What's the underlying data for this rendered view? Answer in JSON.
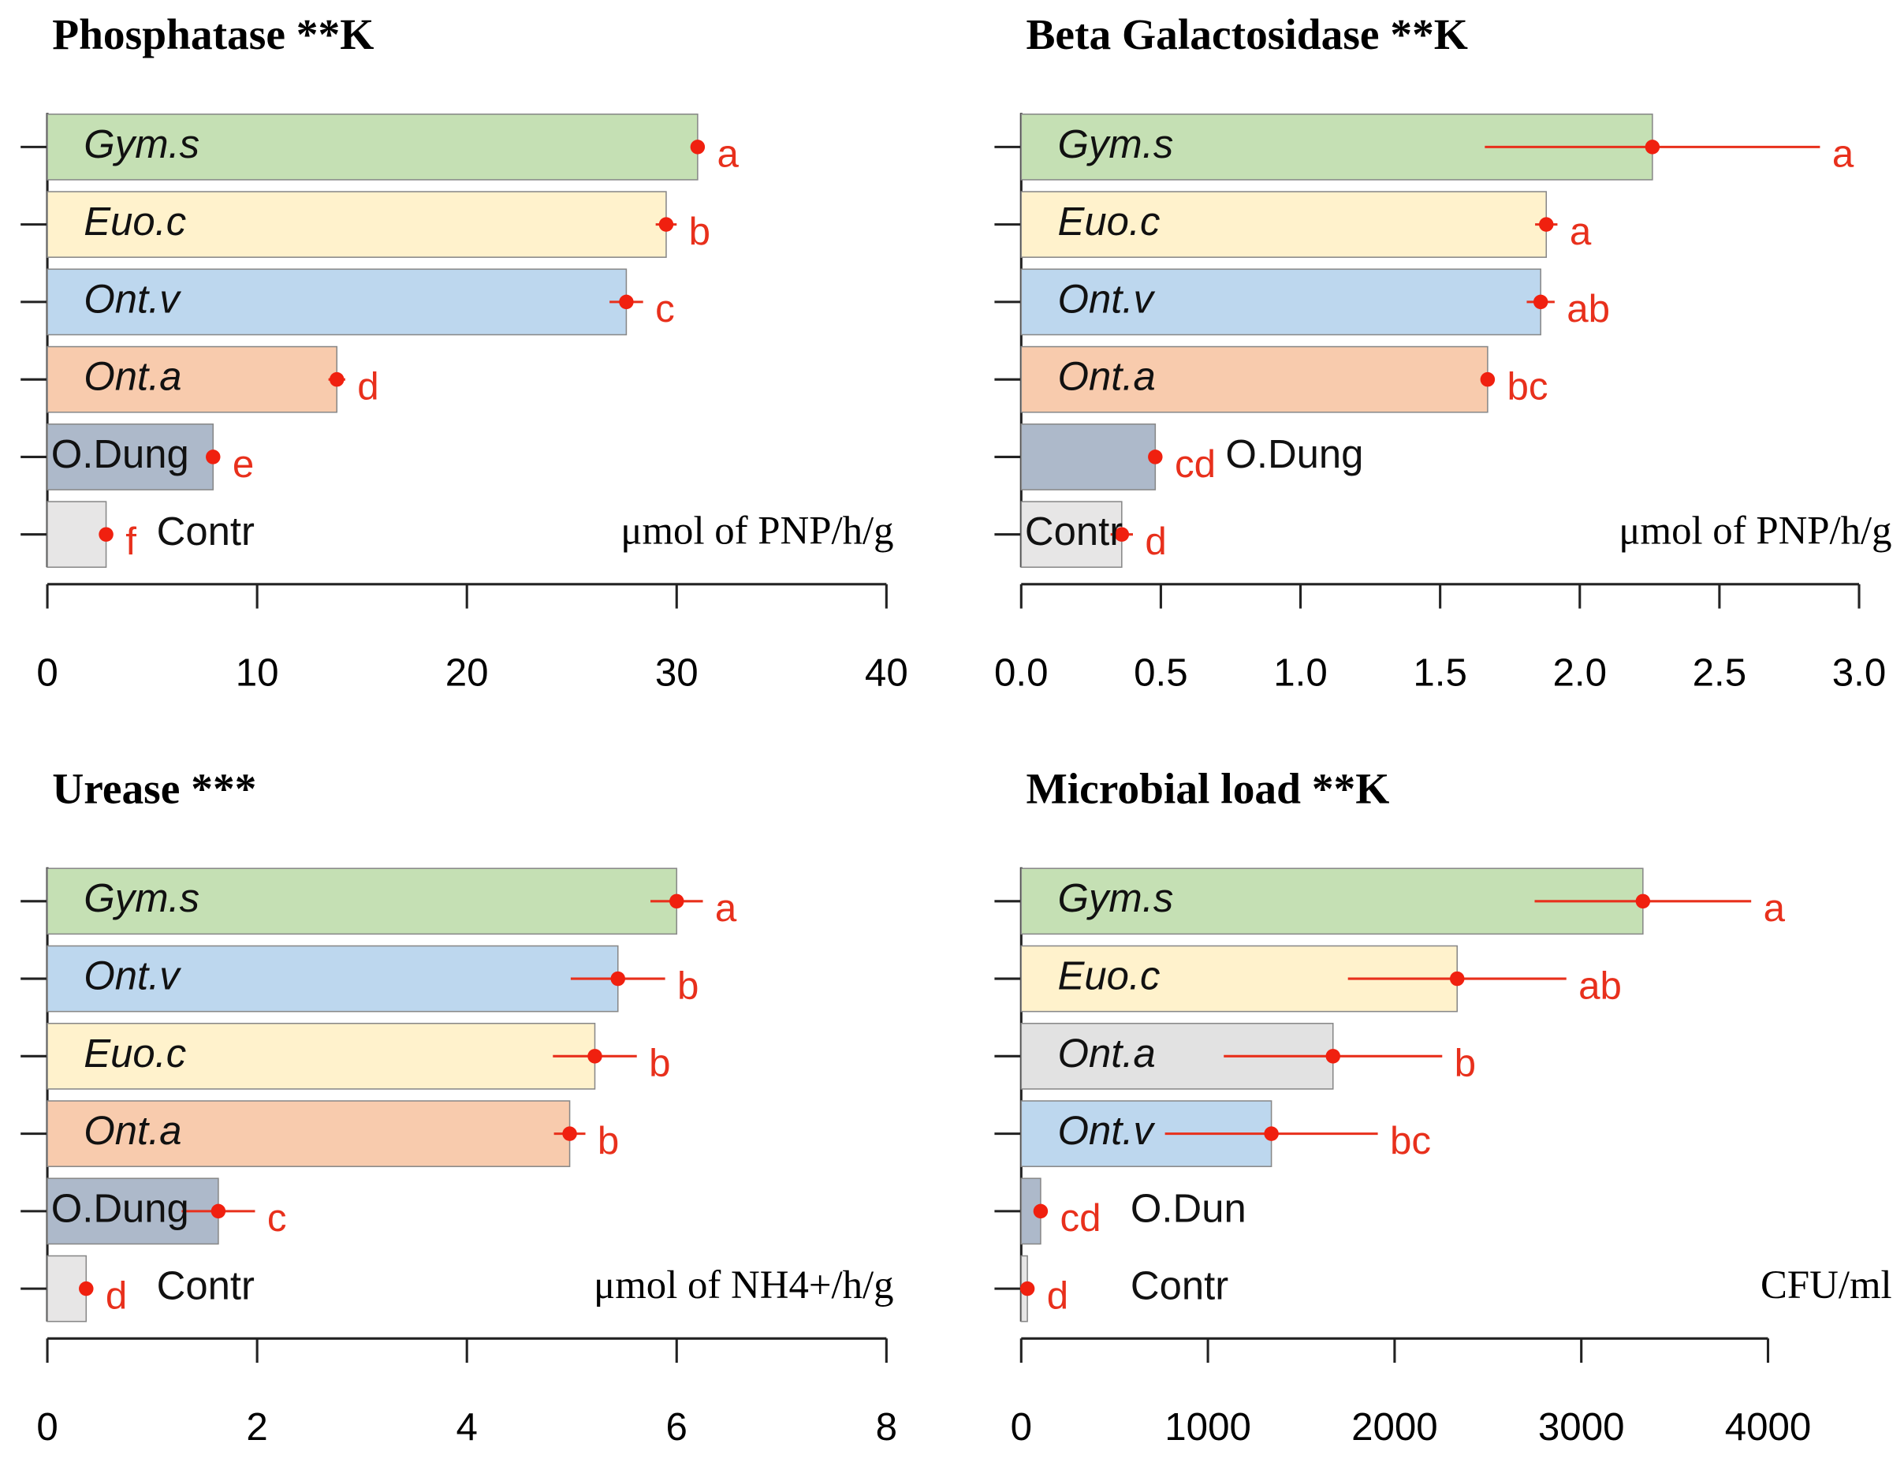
{
  "chart_data": [
    {
      "type": "bar",
      "title": "Phosphatase  **K",
      "unit": "μmol of PNP/h/g",
      "categories": [
        "Gym.s",
        "Euo.c",
        "Ont.v",
        "Ont.a",
        "O.Dung",
        "Contr"
      ],
      "label_italic": [
        true,
        true,
        true,
        true,
        false,
        false
      ],
      "values": [
        31.0,
        29.5,
        27.6,
        13.8,
        7.9,
        2.8
      ],
      "errors": [
        0.3,
        0.5,
        0.8,
        0.4,
        0.2,
        0.1
      ],
      "annotations": [
        "a",
        "b",
        "c",
        "d",
        "e",
        "f"
      ],
      "colors": [
        "#c5e0b4",
        "#fff2cc",
        "#bdd7ee",
        "#f8cbad",
        "#adb9ca",
        "#e7e6e6"
      ],
      "xlim": [
        0,
        40
      ],
      "xticks": [
        0,
        10,
        20,
        30,
        40
      ]
    },
    {
      "type": "bar",
      "title": "Beta Galactosidase  **K",
      "unit": "μmol of PNP/h/g",
      "categories": [
        "Gym.s",
        "Euo.c",
        "Ont.v",
        "Ont.a",
        "O.Dung",
        "Contr"
      ],
      "label_italic": [
        true,
        true,
        true,
        true,
        false,
        false
      ],
      "values": [
        2.26,
        1.88,
        1.86,
        1.67,
        0.48,
        0.36
      ],
      "errors": [
        0.6,
        0.04,
        0.05,
        0.02,
        0.01,
        0.04
      ],
      "annotations": [
        "a",
        "a",
        "ab",
        "bc",
        "cd",
        "d"
      ],
      "colors": [
        "#c5e0b4",
        "#fff2cc",
        "#bdd7ee",
        "#f8cbad",
        "#adb9ca",
        "#e7e6e6"
      ],
      "xlim": [
        0,
        3
      ],
      "xticks": [
        {
          "value": 0,
          "label": "0.0"
        },
        0.5,
        {
          "value": 1,
          "label": "1.0"
        },
        1.5,
        {
          "value": 2,
          "label": "2.0"
        },
        2.5,
        {
          "value": 3,
          "label": "3.0"
        }
      ]
    },
    {
      "type": "bar",
      "title": "Urease ***",
      "unit": "μmol of NH4+/h/g",
      "categories": [
        "Gym.s",
        "Ont.v",
        "Euo.c",
        "Ont.a",
        "O.Dung",
        "Contr"
      ],
      "label_italic": [
        true,
        true,
        true,
        true,
        false,
        false
      ],
      "values": [
        6.0,
        5.44,
        5.22,
        4.98,
        1.63,
        0.37
      ],
      "errors": [
        0.25,
        0.45,
        0.4,
        0.15,
        0.35,
        0.03
      ],
      "annotations": [
        "a",
        "b",
        "b",
        "b",
        "c",
        "d"
      ],
      "colors": [
        "#c5e0b4",
        "#bdd7ee",
        "#fff2cc",
        "#f8cbad",
        "#adb9ca",
        "#e7e6e6"
      ],
      "xlim": [
        0,
        8
      ],
      "xticks": [
        0,
        2,
        4,
        6,
        8
      ]
    },
    {
      "type": "bar",
      "title": "Microbial load  **K",
      "unit": "CFU/ml",
      "categories": [
        "Gym.s",
        "Euo.c",
        "Ont.a",
        "Ont.v",
        "O.Dun",
        "Contr"
      ],
      "label_italic": [
        true,
        true,
        true,
        true,
        false,
        false
      ],
      "values": [
        3330,
        2335,
        1670,
        1340,
        104,
        33
      ],
      "errors": [
        580,
        585,
        585,
        570,
        10,
        5
      ],
      "annotations": [
        "a",
        "ab",
        "b",
        "bc",
        "cd",
        "d"
      ],
      "colors": [
        "#c5e0b4",
        "#fff2cc",
        "#e2e2e2",
        "#bdd7ee",
        "#adb9ca",
        "#e7e6e6"
      ],
      "xlim": [
        0,
        4000
      ],
      "xticks": [
        0,
        1000,
        2000,
        3000,
        4000
      ]
    }
  ]
}
